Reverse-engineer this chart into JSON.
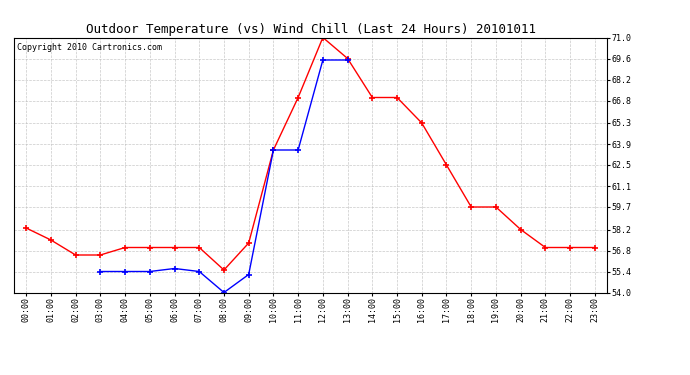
{
  "title": "Outdoor Temperature (vs) Wind Chill (Last 24 Hours) 20101011",
  "copyright": "Copyright 2010 Cartronics.com",
  "x_labels": [
    "00:00",
    "01:00",
    "02:00",
    "03:00",
    "04:00",
    "05:00",
    "06:00",
    "07:00",
    "08:00",
    "09:00",
    "10:00",
    "11:00",
    "12:00",
    "13:00",
    "14:00",
    "15:00",
    "16:00",
    "17:00",
    "18:00",
    "19:00",
    "20:00",
    "21:00",
    "22:00",
    "23:00"
  ],
  "red_y": [
    58.3,
    57.5,
    56.5,
    56.5,
    57.0,
    57.0,
    57.0,
    57.0,
    55.5,
    57.3,
    63.5,
    67.0,
    71.0,
    69.6,
    67.0,
    67.0,
    65.3,
    62.5,
    59.7,
    59.7,
    58.2,
    57.0,
    57.0,
    57.0
  ],
  "blue_x": [
    3,
    4,
    5,
    6,
    7,
    8,
    9,
    10,
    11,
    12,
    13
  ],
  "blue_y": [
    55.4,
    55.4,
    55.4,
    55.6,
    55.4,
    54.0,
    55.2,
    63.5,
    63.5,
    69.5,
    69.5
  ],
  "ylim": [
    54.0,
    71.0
  ],
  "yticks": [
    54.0,
    55.4,
    56.8,
    58.2,
    59.7,
    61.1,
    62.5,
    63.9,
    65.3,
    66.8,
    68.2,
    69.6,
    71.0
  ],
  "red_color": "#ff0000",
  "blue_color": "#0000ff",
  "bg_color": "#ffffff",
  "grid_color": "#bbbbbb",
  "title_fontsize": 9,
  "copyright_fontsize": 6,
  "tick_fontsize": 6
}
